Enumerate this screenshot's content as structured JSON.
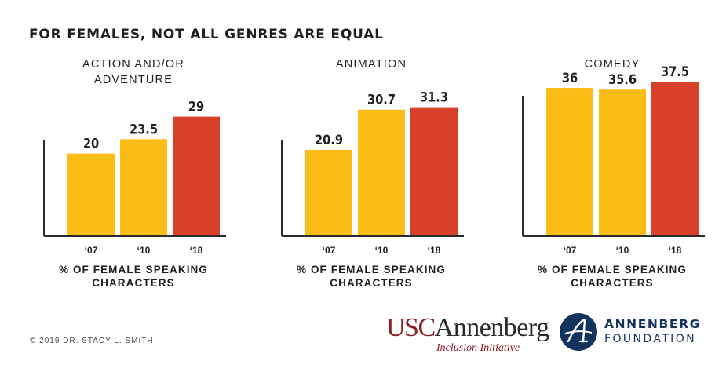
{
  "title": "FOR FEMALES, NOT ALL GENRES ARE EQUAL",
  "colors": {
    "early": "#fbbd15",
    "latest": "#d9402a",
    "axis": "#2a2a2a",
    "text": "#1f1f1f"
  },
  "chart_data": [
    {
      "type": "bar",
      "title_lines": [
        "ACTION AND/OR",
        "ADVENTURE"
      ],
      "categories": [
        "‘07",
        "‘10",
        "‘18"
      ],
      "values": [
        20,
        23.5,
        29
      ],
      "value_labels": [
        "20",
        "23.5",
        "29"
      ],
      "xlabel_lines": [
        "% OF FEMALE SPEAKING",
        "CHARACTERS"
      ],
      "ylim": [
        0,
        46
      ]
    },
    {
      "type": "bar",
      "title_lines": [
        "ANIMATION"
      ],
      "categories": [
        "‘07",
        "‘10",
        "‘18"
      ],
      "values": [
        20.9,
        30.7,
        31.3
      ],
      "value_labels": [
        "20.9",
        "30.7",
        "31.3"
      ],
      "xlabel_lines": [
        "% OF FEMALE SPEAKING",
        "CHARACTERS"
      ],
      "ylim": [
        0,
        46
      ]
    },
    {
      "type": "bar",
      "title_lines": [
        "COMEDY"
      ],
      "categories": [
        "‘07",
        "‘10",
        "‘18"
      ],
      "values": [
        36,
        35.6,
        37.5
      ],
      "value_labels": [
        "36",
        "35.6",
        "37.5"
      ],
      "xlabel_lines": [
        "% OF FEMALE SPEAKING",
        "CHARACTERS"
      ],
      "ylim": [
        0,
        46
      ]
    }
  ],
  "footer": {
    "copyright": "© 2019 DR. STACY L. SMITH",
    "usc_logo": {
      "usc": "USC",
      "annenberg": "Annenberg",
      "subtitle": "Inclusion Initiative"
    },
    "foundation_logo": {
      "line1": "ANNENBERG",
      "line2": "FOUNDATION"
    }
  }
}
